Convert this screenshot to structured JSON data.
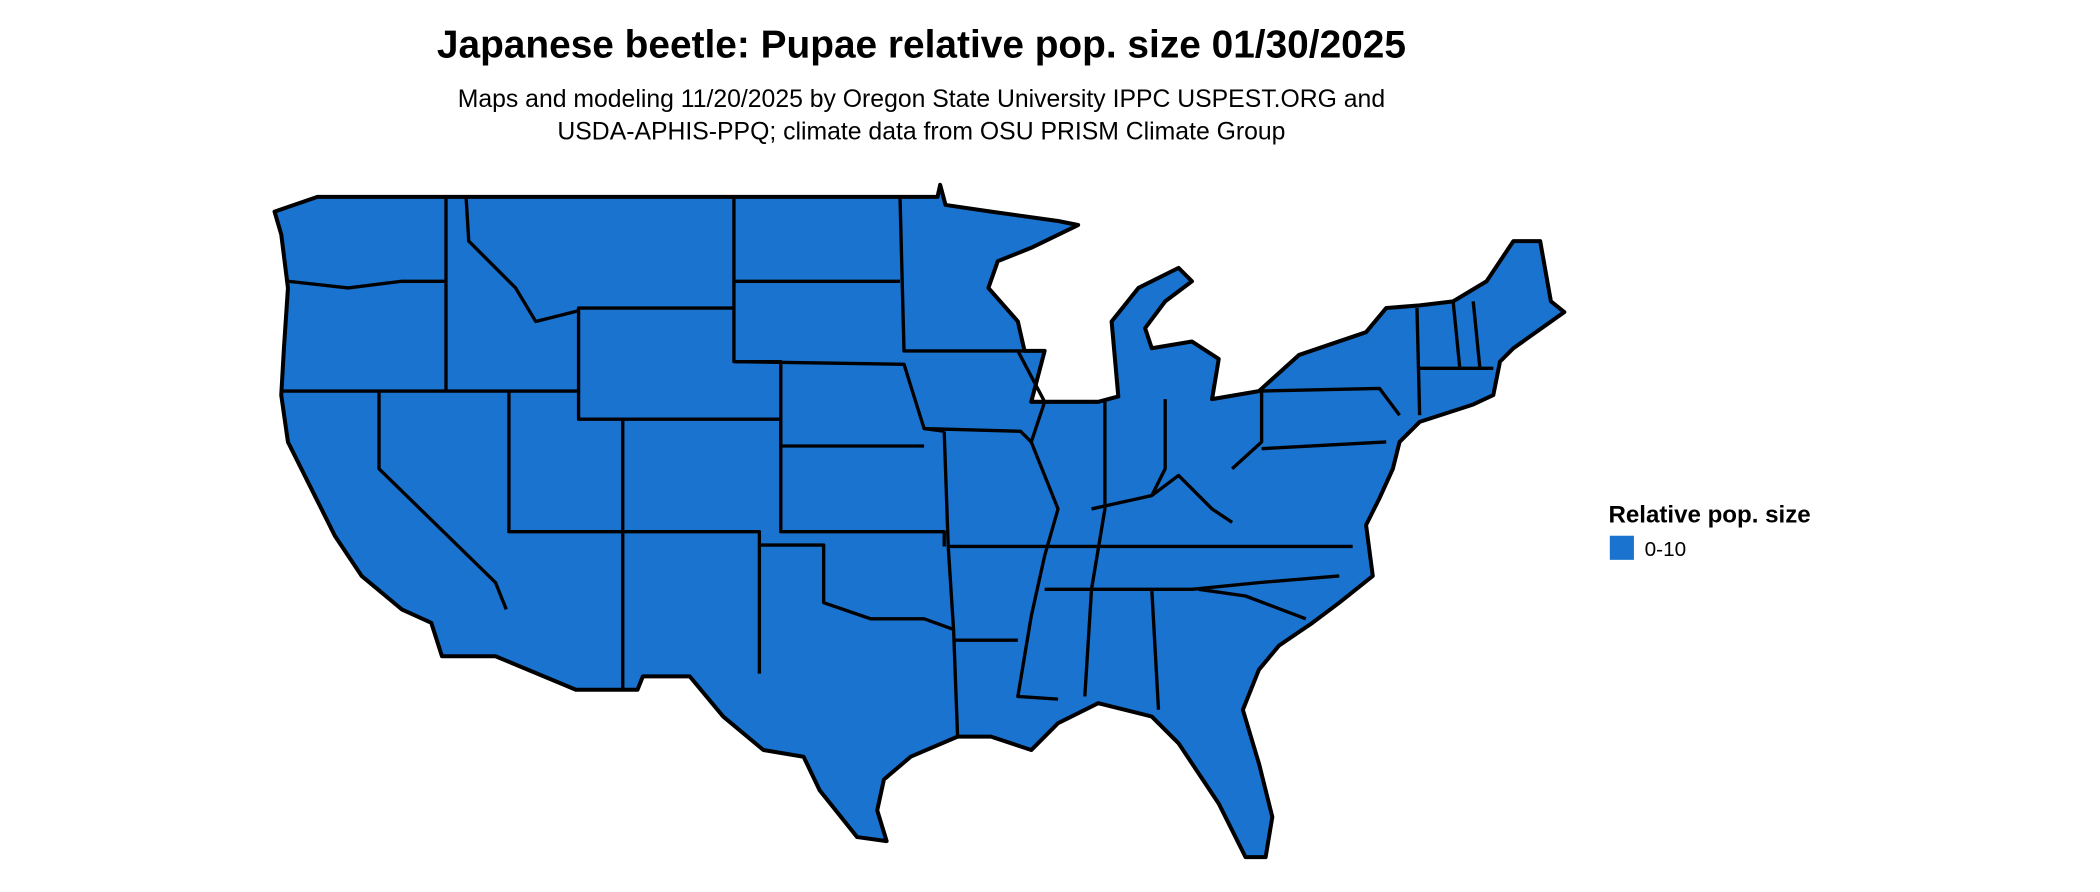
{
  "title": "Japanese beetle: Pupae relative pop. size 01/30/2025",
  "subtitle_lines": [
    "Maps and modeling 11/20/2025 by Oregon State University IPPC USPEST.ORG and",
    "USDA-APHIS-PPQ; climate data from OSU PRISM Climate Group"
  ],
  "map": {
    "region": "Contiguous United States",
    "fill_color": "#1a73cf",
    "border_color": "#000000",
    "category_shown": "0-10"
  },
  "legend": {
    "title": "Relative pop. size",
    "items": [
      {
        "label": "0-10",
        "color": "#1a73cf"
      }
    ]
  }
}
